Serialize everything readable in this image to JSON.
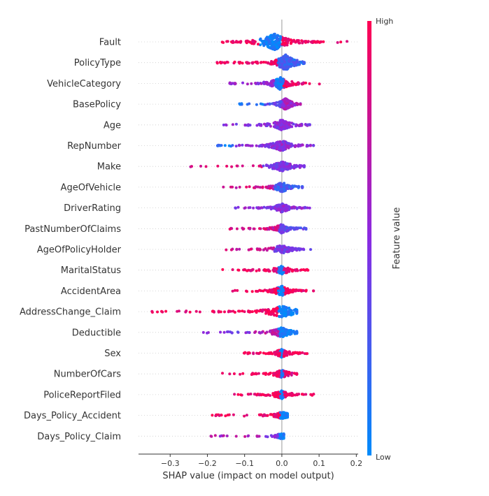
{
  "chart_data": {
    "type": "scatter",
    "subtype": "shap-beeswarm",
    "xlabel": "SHAP value (impact on model output)",
    "xlim": [
      -0.385,
      0.205
    ],
    "xticks": [
      {
        "value": -0.3,
        "label": "−0.3"
      },
      {
        "value": -0.2,
        "label": "−0.2"
      },
      {
        "value": -0.1,
        "label": "−0.1"
      },
      {
        "value": 0.0,
        "label": "0.0"
      },
      {
        "value": 0.1,
        "label": "0.1"
      },
      {
        "value": 0.2,
        "label": "0.2"
      }
    ],
    "grid": false,
    "zero_line": true,
    "colorbar": {
      "label": "Feature value",
      "high_label": "High",
      "low_label": "Low",
      "high_color": "#ff0052",
      "mid_color": "#8a2be2",
      "low_color": "#008bfb"
    },
    "features": [
      {
        "name": "Fault",
        "min": -0.16,
        "max": 0.175,
        "center": -0.02,
        "density": 2.0,
        "segments": [
          {
            "from": -0.16,
            "to": -0.06,
            "value": 0.95
          },
          {
            "from": -0.06,
            "to": 0.0,
            "value": 0.05
          },
          {
            "from": 0.0,
            "to": 0.175,
            "value": 0.95
          }
        ]
      },
      {
        "name": "PolicyType",
        "min": -0.175,
        "max": 0.06,
        "center": 0.01,
        "density": 1.9,
        "segments": [
          {
            "from": -0.175,
            "to": -0.01,
            "value": 0.92
          },
          {
            "from": -0.01,
            "to": 0.06,
            "value": 0.2
          }
        ]
      },
      {
        "name": "VehicleCategory",
        "min": -0.14,
        "max": 0.11,
        "center": -0.005,
        "density": 1.5,
        "segments": [
          {
            "from": -0.14,
            "to": -0.02,
            "value": 0.55
          },
          {
            "from": -0.02,
            "to": 0.005,
            "value": 0.08
          },
          {
            "from": 0.005,
            "to": 0.11,
            "value": 0.92
          }
        ]
      },
      {
        "name": "BasePolicy",
        "min": -0.12,
        "max": 0.05,
        "center": 0.01,
        "density": 1.4,
        "segments": [
          {
            "from": -0.12,
            "to": -0.05,
            "value": 0.1
          },
          {
            "from": -0.05,
            "to": 0.0,
            "value": 0.35
          },
          {
            "from": 0.0,
            "to": 0.05,
            "value": 0.6
          }
        ]
      },
      {
        "name": "Age",
        "min": -0.16,
        "max": 0.075,
        "center": 0.0,
        "density": 1.3,
        "segments": [
          {
            "from": -0.16,
            "to": 0.075,
            "value": 0.5
          }
        ]
      },
      {
        "name": "RepNumber",
        "min": -0.18,
        "max": 0.085,
        "center": 0.0,
        "density": 1.3,
        "segments": [
          {
            "from": -0.18,
            "to": -0.13,
            "value": 0.1
          },
          {
            "from": -0.13,
            "to": 0.085,
            "value": 0.5
          }
        ]
      },
      {
        "name": "Make",
        "min": -0.25,
        "max": 0.06,
        "center": 0.0,
        "density": 1.2,
        "segments": [
          {
            "from": -0.25,
            "to": -0.05,
            "value": 0.85
          },
          {
            "from": -0.05,
            "to": 0.06,
            "value": 0.45
          }
        ]
      },
      {
        "name": "AgeOfVehicle",
        "min": -0.17,
        "max": 0.055,
        "center": 0.0,
        "density": 1.2,
        "segments": [
          {
            "from": -0.17,
            "to": -0.02,
            "value": 0.8
          },
          {
            "from": -0.02,
            "to": 0.055,
            "value": 0.25
          }
        ]
      },
      {
        "name": "DriverRating",
        "min": -0.13,
        "max": 0.075,
        "center": 0.0,
        "density": 1.1,
        "segments": [
          {
            "from": -0.13,
            "to": 0.075,
            "value": 0.5
          }
        ]
      },
      {
        "name": "PastNumberOfClaims",
        "min": -0.14,
        "max": 0.065,
        "center": 0.0,
        "density": 1.1,
        "segments": [
          {
            "from": -0.14,
            "to": -0.01,
            "value": 0.8
          },
          {
            "from": -0.01,
            "to": 0.065,
            "value": 0.35
          }
        ]
      },
      {
        "name": "AgeOfPolicyHolder",
        "min": -0.16,
        "max": 0.08,
        "center": 0.0,
        "density": 1.1,
        "segments": [
          {
            "from": -0.16,
            "to": -0.02,
            "value": 0.8
          },
          {
            "from": -0.02,
            "to": 0.08,
            "value": 0.45
          }
        ]
      },
      {
        "name": "MaritalStatus",
        "min": -0.16,
        "max": 0.07,
        "center": 0.0,
        "density": 1.0,
        "segments": [
          {
            "from": -0.16,
            "to": -0.01,
            "value": 0.92
          },
          {
            "from": -0.01,
            "to": 0.005,
            "value": 0.05
          },
          {
            "from": 0.005,
            "to": 0.07,
            "value": 0.92
          }
        ]
      },
      {
        "name": "AccidentArea",
        "min": -0.14,
        "max": 0.085,
        "center": 0.0,
        "density": 1.2,
        "segments": [
          {
            "from": -0.14,
            "to": -0.01,
            "value": 0.95
          },
          {
            "from": -0.01,
            "to": 0.005,
            "value": 0.03
          },
          {
            "from": 0.005,
            "to": 0.085,
            "value": 0.95
          }
        ]
      },
      {
        "name": "AddressChange_Claim",
        "min": -0.355,
        "max": 0.04,
        "center": 0.0,
        "density": 1.4,
        "segments": [
          {
            "from": -0.355,
            "to": -0.01,
            "value": 0.95
          },
          {
            "from": -0.01,
            "to": 0.04,
            "value": 0.05
          }
        ]
      },
      {
        "name": "Deductible",
        "min": -0.215,
        "max": 0.04,
        "center": 0.0,
        "density": 1.2,
        "segments": [
          {
            "from": -0.215,
            "to": -0.08,
            "value": 0.45
          },
          {
            "from": -0.08,
            "to": -0.01,
            "value": 0.7
          },
          {
            "from": -0.01,
            "to": 0.04,
            "value": 0.05
          }
        ]
      },
      {
        "name": "Sex",
        "min": -0.105,
        "max": 0.07,
        "center": 0.0,
        "density": 1.1,
        "segments": [
          {
            "from": -0.105,
            "to": -0.005,
            "value": 0.95
          },
          {
            "from": -0.005,
            "to": 0.005,
            "value": 0.05
          },
          {
            "from": 0.005,
            "to": 0.07,
            "value": 0.95
          }
        ]
      },
      {
        "name": "NumberOfCars",
        "min": -0.165,
        "max": 0.04,
        "center": 0.0,
        "density": 1.0,
        "segments": [
          {
            "from": -0.165,
            "to": -0.005,
            "value": 0.95
          },
          {
            "from": -0.005,
            "to": 0.005,
            "value": 0.05
          },
          {
            "from": 0.005,
            "to": 0.04,
            "value": 0.9
          }
        ]
      },
      {
        "name": "PoliceReportFiled",
        "min": -0.14,
        "max": 0.1,
        "center": 0.0,
        "density": 1.0,
        "segments": [
          {
            "from": -0.14,
            "to": -0.005,
            "value": 0.95
          },
          {
            "from": -0.005,
            "to": 0.005,
            "value": 0.05
          },
          {
            "from": 0.005,
            "to": 0.1,
            "value": 0.95
          }
        ]
      },
      {
        "name": "Days_Policy_Accident",
        "min": -0.195,
        "max": 0.015,
        "center": 0.0,
        "density": 0.9,
        "segments": [
          {
            "from": -0.195,
            "to": -0.005,
            "value": 0.95
          },
          {
            "from": -0.005,
            "to": 0.015,
            "value": 0.05
          }
        ]
      },
      {
        "name": "Days_Policy_Claim",
        "min": -0.195,
        "max": 0.005,
        "center": 0.0,
        "density": 0.7,
        "segments": [
          {
            "from": -0.195,
            "to": -0.06,
            "value": 0.65
          },
          {
            "from": -0.06,
            "to": -0.01,
            "value": 0.45
          },
          {
            "from": -0.01,
            "to": 0.005,
            "value": 0.05
          }
        ]
      }
    ]
  }
}
